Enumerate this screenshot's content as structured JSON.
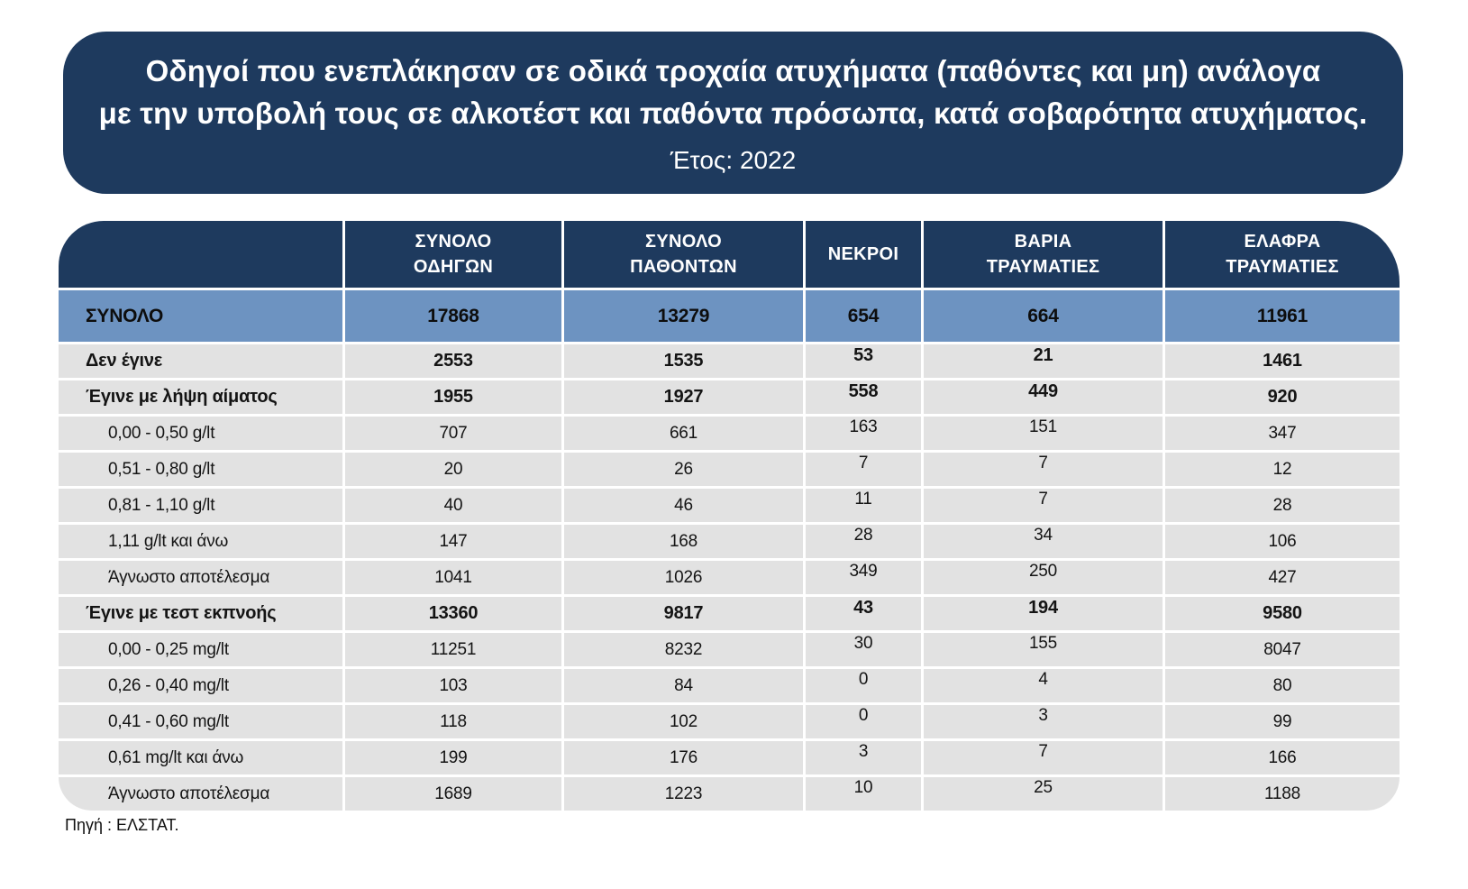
{
  "colors": {
    "navy": "#1e3a5e",
    "total_row_blue": "#6d93c1",
    "row_gray": "#e2e2e2",
    "page_background": "#ffffff",
    "header_text": "#ffffff",
    "body_text": "#141414"
  },
  "title": {
    "line1": "Οδηγοί που ενεπλάκησαν σε οδικά τροχαία ατυχήματα (παθόντες και μη) ανάλογα",
    "line2": "με την υποβολή τους σε αλκοτέστ και παθόντα πρόσωπα, κατά σοβαρότητα ατυχήματος.",
    "year_line": "Έτος: 2022"
  },
  "table": {
    "column_headers": [
      "",
      "ΣΥΝΟΛΟ\nΟΔΗΓΩΝ",
      "ΣΥΝΟΛΟ\nΠΑΘΟΝΤΩΝ",
      "ΝΕΚΡΟΙ",
      "ΒΑΡΙΑ\nΤΡΑΥΜΑΤΙΕΣ",
      "ΕΛΑΦΡΑ\nΤΡΑΥΜΑΤΙΕΣ"
    ],
    "rows": [
      {
        "type": "total",
        "label": "ΣΥΝΟΛΟ",
        "values": [
          "17868",
          "13279",
          "654",
          "664",
          "11961"
        ]
      },
      {
        "type": "section",
        "label": "Δεν έγινε",
        "values": [
          "2553",
          "1535",
          "53",
          "21",
          "1461"
        ]
      },
      {
        "type": "section",
        "label": "Έγινε με λήψη αίματος",
        "values": [
          "1955",
          "1927",
          "558",
          "449",
          "920"
        ]
      },
      {
        "type": "sub",
        "label": "0,00 - 0,50 g/lt",
        "values": [
          "707",
          "661",
          "163",
          "151",
          "347"
        ]
      },
      {
        "type": "sub",
        "label": "0,51 - 0,80 g/lt",
        "values": [
          "20",
          "26",
          "7",
          "7",
          "12"
        ]
      },
      {
        "type": "sub",
        "label": "0,81 - 1,10 g/lt",
        "values": [
          "40",
          "46",
          "11",
          "7",
          "28"
        ]
      },
      {
        "type": "sub",
        "label": "1,11 g/lt και άνω",
        "values": [
          "147",
          "168",
          "28",
          "34",
          "106"
        ]
      },
      {
        "type": "sub",
        "label": "Άγνωστο αποτέλεσμα",
        "values": [
          "1041",
          "1026",
          "349",
          "250",
          "427"
        ]
      },
      {
        "type": "section",
        "label": "Έγινε με τεστ εκπνοής",
        "values": [
          "13360",
          "9817",
          "43",
          "194",
          "9580"
        ]
      },
      {
        "type": "sub",
        "label": "0,00 - 0,25 mg/lt",
        "values": [
          "11251",
          "8232",
          "30",
          "155",
          "8047"
        ]
      },
      {
        "type": "sub",
        "label": "0,26 - 0,40 mg/lt",
        "values": [
          "103",
          "84",
          "0",
          "4",
          "80"
        ]
      },
      {
        "type": "sub",
        "label": "0,41 - 0,60 mg/lt",
        "values": [
          "118",
          "102",
          "0",
          "3",
          "99"
        ]
      },
      {
        "type": "sub",
        "label": "0,61 mg/lt και άνω",
        "values": [
          "199",
          "176",
          "3",
          "7",
          "166"
        ]
      },
      {
        "type": "sub",
        "label": "Άγνωστο αποτέλεσμα",
        "values": [
          "1689",
          "1223",
          "10",
          "25",
          "1188"
        ]
      }
    ]
  },
  "footer": {
    "source": "Πηγή : ΕΛΣΤΑΤ."
  },
  "chart_data": {
    "type": "table",
    "title": "Οδηγοί που ενεπλάκησαν σε οδικά τροχαία ατυχήματα (παθόντες και μη) ανάλογα με την υποβολή τους σε αλκοτέστ και παθόντα πρόσωπα, κατά σοβαρότητα ατυχήματος.",
    "subtitle": "Έτος: 2022",
    "columns": [
      "ΣΥΝΟΛΟ ΟΔΗΓΩΝ",
      "ΣΥΝΟΛΟ ΠΑΘΟΝΤΩΝ",
      "ΝΕΚΡΟΙ",
      "ΒΑΡΙΑ ΤΡΑΥΜΑΤΙΕΣ",
      "ΕΛΑΦΡΑ ΤΡΑΥΜΑΤΙΕΣ"
    ],
    "rows": [
      {
        "label": "ΣΥΝΟΛΟ",
        "values": [
          17868,
          13279,
          654,
          664,
          11961
        ]
      },
      {
        "label": "Δεν έγινε",
        "values": [
          2553,
          1535,
          53,
          21,
          1461
        ]
      },
      {
        "label": "Έγινε με λήψη αίματος",
        "values": [
          1955,
          1927,
          558,
          449,
          920
        ]
      },
      {
        "label": "0,00 - 0,50 g/lt",
        "values": [
          707,
          661,
          163,
          151,
          347
        ]
      },
      {
        "label": "0,51 - 0,80 g/lt",
        "values": [
          20,
          26,
          7,
          7,
          12
        ]
      },
      {
        "label": "0,81 - 1,10 g/lt",
        "values": [
          40,
          46,
          11,
          7,
          28
        ]
      },
      {
        "label": "1,11 g/lt και άνω",
        "values": [
          147,
          168,
          28,
          34,
          106
        ]
      },
      {
        "label": "Άγνωστο αποτέλεσμα",
        "values": [
          1041,
          1026,
          349,
          250,
          427
        ]
      },
      {
        "label": "Έγινε με τεστ εκπνοής",
        "values": [
          13360,
          9817,
          43,
          194,
          9580
        ]
      },
      {
        "label": "0,00 - 0,25 mg/lt",
        "values": [
          11251,
          8232,
          30,
          155,
          8047
        ]
      },
      {
        "label": "0,26 - 0,40 mg/lt",
        "values": [
          103,
          84,
          0,
          4,
          80
        ]
      },
      {
        "label": "0,41 - 0,60 mg/lt",
        "values": [
          118,
          102,
          0,
          3,
          99
        ]
      },
      {
        "label": "0,61 mg/lt και άνω",
        "values": [
          199,
          176,
          3,
          7,
          166
        ]
      },
      {
        "label": "Άγνωστο αποτέλεσμα",
        "values": [
          1689,
          1223,
          10,
          25,
          1188
        ]
      }
    ],
    "source": "Πηγή : ΕΛΣΤΑΤ."
  }
}
